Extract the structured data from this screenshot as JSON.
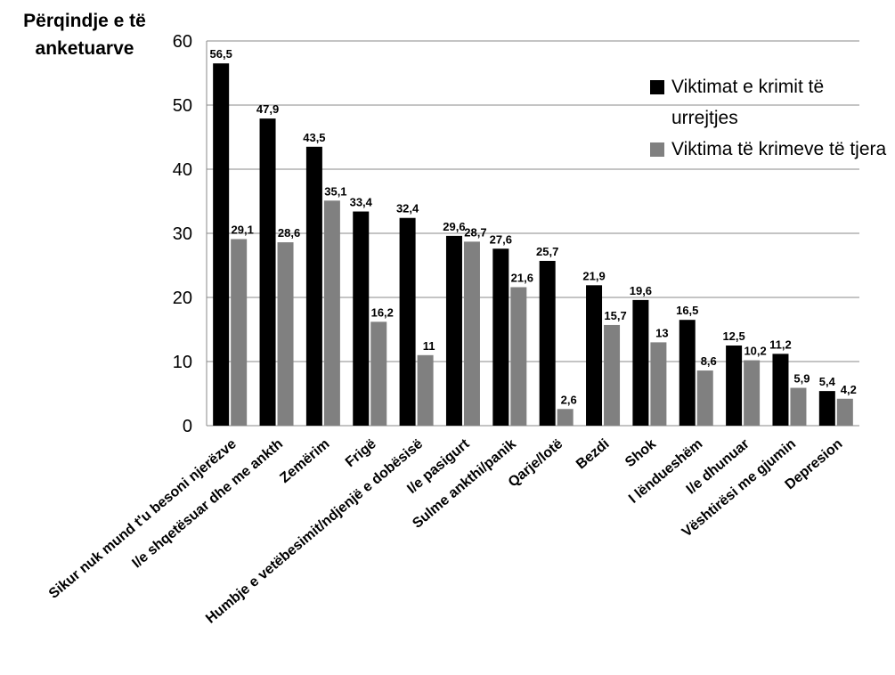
{
  "chart_data": {
    "type": "bar",
    "ylabel": "Përqindje e të anketuarve",
    "ylim": [
      0,
      60
    ],
    "yticks": [
      0,
      10,
      20,
      30,
      40,
      50,
      60
    ],
    "grid": true,
    "legend_position": "top-right",
    "categories": [
      "Sikur nuk mund t'u besoni njerëzve",
      "I/e shqetësuar dhe me ankth",
      "Zemërim",
      "Frigë",
      "Humbje e vetëbesimit/ndjenjë e dobësisë",
      "I/e pasigurt",
      "Sulme ankthi/panik",
      "Qarje/lotë",
      "Bezdi",
      "Shok",
      "I lëndueshëm",
      "I/e dhunuar",
      "Vështirësi me gjumin",
      "Depresion"
    ],
    "series": [
      {
        "name": "Viktimat e krimit të urrejtjes",
        "color": "#000000",
        "values": [
          56.5,
          47.9,
          43.5,
          33.4,
          32.4,
          29.6,
          27.6,
          25.7,
          21.9,
          19.6,
          16.5,
          12.5,
          11.2,
          5.4
        ],
        "labels": [
          "56,5",
          "47,9",
          "43,5",
          "33,4",
          "32,4",
          "29,6",
          "27,6",
          "25,7",
          "21,9",
          "19,6",
          "16,5",
          "12,5",
          "11,2",
          "5,4"
        ]
      },
      {
        "name": "Viktima të krimeve të tjera",
        "color": "#808080",
        "values": [
          29.1,
          28.6,
          35.1,
          16.2,
          11,
          28.7,
          21.6,
          2.6,
          15.7,
          13,
          8.6,
          10.2,
          5.9,
          4.2
        ],
        "labels": [
          "29,1",
          "28,6",
          "35,1",
          "16,2",
          "11",
          "28,7",
          "21,6",
          "2,6",
          "15,7",
          "13",
          "8,6",
          "10,2",
          "5,9",
          "4,2"
        ]
      }
    ]
  }
}
